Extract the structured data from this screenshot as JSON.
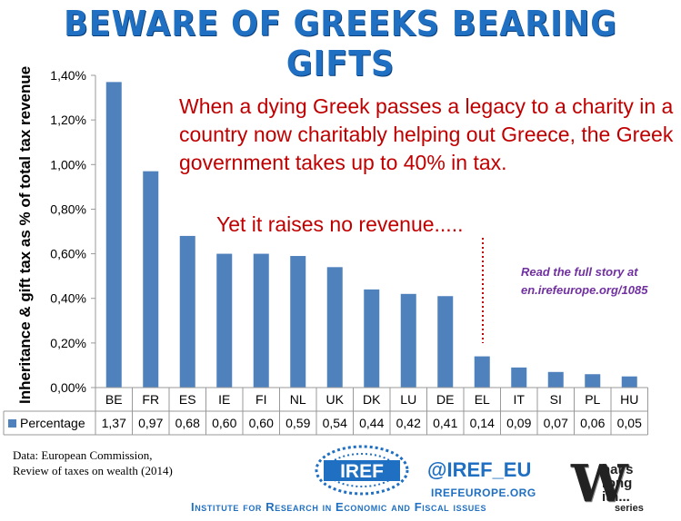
{
  "header": {
    "title": "BEWARE OF GREEKS BEARING GIFTS"
  },
  "annotations": {
    "main": "When a dying Greek passes a legacy to a charity in a country now charitably helping out Greece, the Greek government takes up to 40% in tax.",
    "revenue": "Yet it raises no revenue.....",
    "read_more_line1": "Read the full story at",
    "read_more_line2": "en.irefeurope.org/1085"
  },
  "footer": {
    "source_line1": "Data: European Commission,",
    "source_line2": "Review of taxes on wealth (2014)",
    "logo_text": "IREF",
    "handle": "@IREF_EU",
    "website": "IREFEUROPE.ORG",
    "institute": "Institute for Research in Economic and Fiscal issues",
    "badge_letter": "W",
    "badge_line1": "hat's",
    "badge_line2": "rong",
    "badge_line3": "ith...",
    "badge_series": "series"
  },
  "colors": {
    "bar": "#4f81bd",
    "title": "#1f6fc2",
    "annotation": "#c00000",
    "link": "#7030a0"
  },
  "chart_data": {
    "type": "bar",
    "title": "",
    "ylabel": "Inheritance & gift tax as % of total tax revenue",
    "xlabel": "",
    "categories": [
      "BE",
      "FR",
      "ES",
      "IE",
      "FI",
      "NL",
      "UK",
      "DK",
      "LU",
      "DE",
      "EL",
      "IT",
      "SI",
      "PL",
      "HU"
    ],
    "series": [
      {
        "name": "Percentage",
        "values": [
          1.37,
          0.97,
          0.68,
          0.6,
          0.6,
          0.59,
          0.54,
          0.44,
          0.42,
          0.41,
          0.14,
          0.09,
          0.07,
          0.06,
          0.05
        ]
      }
    ],
    "value_labels": [
      "1,37",
      "0,97",
      "0,68",
      "0,60",
      "0,60",
      "0,59",
      "0,54",
      "0,44",
      "0,42",
      "0,41",
      "0,14",
      "0,09",
      "0,07",
      "0,06",
      "0,05"
    ],
    "yticks": [
      "0,00%",
      "0,20%",
      "0,40%",
      "0,60%",
      "0,80%",
      "1,00%",
      "1,20%",
      "1,40%"
    ],
    "ylim": [
      0,
      1.4
    ],
    "grid": false,
    "data_table": true,
    "legend_marker": "table-left"
  }
}
